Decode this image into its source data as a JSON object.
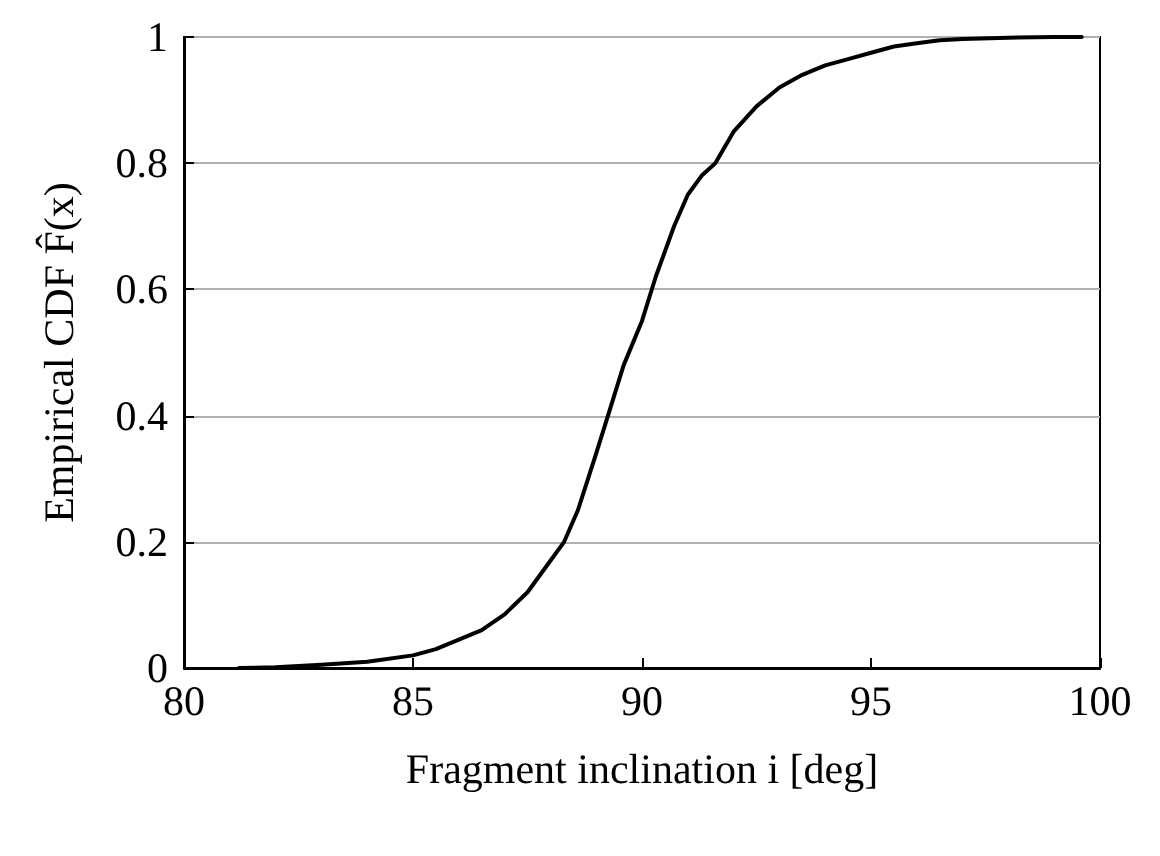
{
  "chart_data": {
    "type": "line",
    "xlabel": "Fragment inclination i [deg]",
    "ylabel": "Empirical CDF F̂(x)",
    "xlim": [
      80,
      100
    ],
    "xticks": [
      80,
      85,
      90,
      95,
      100
    ],
    "ylim": [
      0,
      1
    ],
    "yticks": [
      0,
      0.2,
      0.4,
      0.6,
      0.8,
      1
    ],
    "grid": "y",
    "marker": "none",
    "line_style": "solid",
    "series": [
      {
        "color": "#000000",
        "x": [
          81.2,
          82,
          83,
          84,
          85,
          85.5,
          86,
          86.5,
          87,
          87.5,
          88,
          88.3,
          88.6,
          89,
          89.3,
          89.6,
          90,
          90.3,
          90.7,
          91,
          91.3,
          91.6,
          92,
          92.5,
          93,
          93.5,
          94,
          94.5,
          95,
          95.5,
          96,
          96.5,
          97,
          98,
          99,
          99.6
        ],
        "values": [
          0,
          0.001,
          0.005,
          0.01,
          0.02,
          0.03,
          0.045,
          0.06,
          0.085,
          0.12,
          0.17,
          0.2,
          0.25,
          0.34,
          0.41,
          0.48,
          0.55,
          0.62,
          0.7,
          0.75,
          0.78,
          0.8,
          0.85,
          0.89,
          0.92,
          0.94,
          0.955,
          0.965,
          0.975,
          0.985,
          0.99,
          0.995,
          0.997,
          0.999,
          1,
          1
        ]
      }
    ]
  }
}
